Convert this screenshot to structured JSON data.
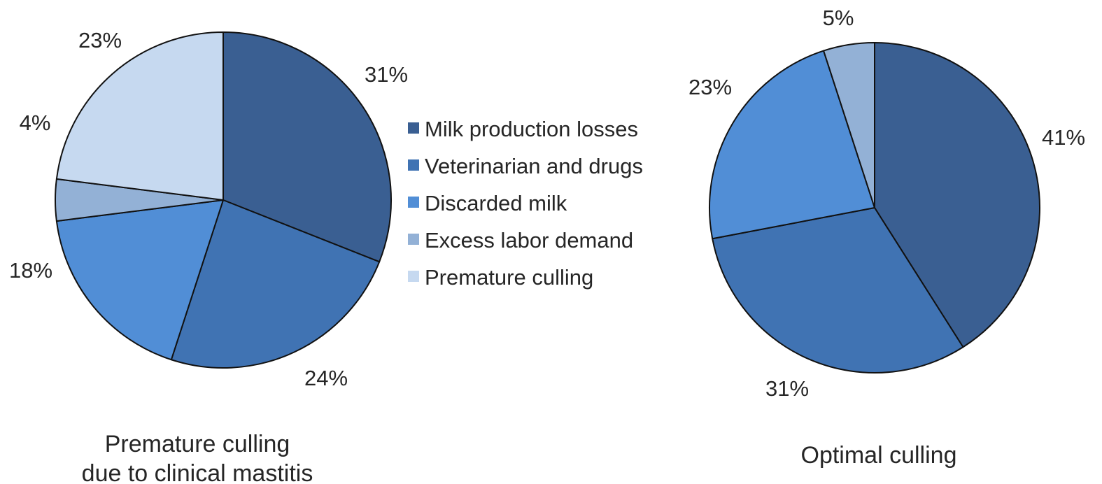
{
  "colors": {
    "milk_production_losses": "#3a5f92",
    "veterinarian_and_drugs": "#4073b3",
    "discarded_milk": "#518ed6",
    "excess_labor_demand": "#93b1d6",
    "premature_culling": "#c6d9f0",
    "slice_border": "#111111"
  },
  "legend": {
    "items": [
      {
        "label": "Milk production losses",
        "color": "#3a5f92"
      },
      {
        "label": "Veterinarian and drugs",
        "color": "#4073b3"
      },
      {
        "label": "Discarded milk",
        "color": "#518ed6"
      },
      {
        "label": "Excess labor demand",
        "color": "#93b1d6"
      },
      {
        "label": "Premature culling",
        "color": "#c6d9f0"
      }
    ]
  },
  "chart_data": [
    {
      "type": "pie",
      "title_lines": [
        "Premature culling",
        "due to clinical mastitis"
      ],
      "categories": [
        "Milk production losses",
        "Veterinarian and drugs",
        "Discarded milk",
        "Excess labor demand",
        "Premature culling"
      ],
      "values": [
        31,
        24,
        18,
        4,
        23
      ],
      "value_labels": [
        "31%",
        "24%",
        "18%",
        "4%",
        "23%"
      ],
      "colors": [
        "#3a5f92",
        "#4073b3",
        "#518ed6",
        "#93b1d6",
        "#c6d9f0"
      ],
      "legend_position": "center"
    },
    {
      "type": "pie",
      "title_lines": [
        "Optimal culling"
      ],
      "categories": [
        "Milk production losses",
        "Veterinarian and drugs",
        "Discarded milk",
        "Excess labor demand"
      ],
      "values": [
        41,
        31,
        23,
        5
      ],
      "value_labels": [
        "41%",
        "31%",
        "23%",
        "5%"
      ],
      "colors": [
        "#3a5f92",
        "#4073b3",
        "#518ed6",
        "#93b1d6"
      ],
      "legend_position": "center"
    }
  ]
}
